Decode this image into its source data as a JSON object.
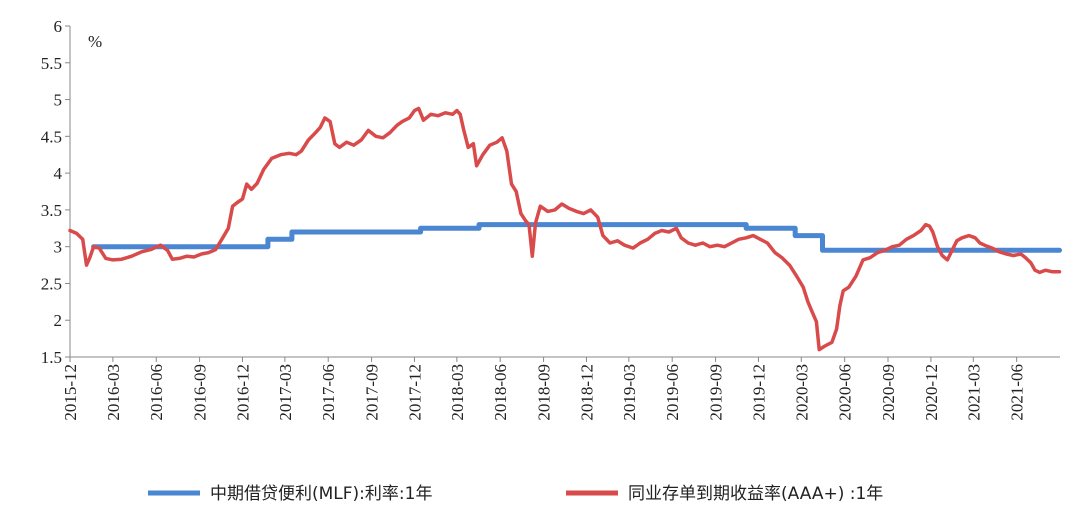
{
  "chart_data": {
    "type": "line",
    "title": "",
    "xlabel": "",
    "ylabel": "",
    "y_unit": "%",
    "ylim": [
      1.5,
      6
    ],
    "yticks": [
      "1.5",
      "2",
      "2.5",
      "3",
      "3.5",
      "4",
      "4.5",
      "5",
      "5.5",
      "6"
    ],
    "xlim": [
      "2015-12",
      "2021-09"
    ],
    "xticks": [
      "2015-12",
      "2016-03",
      "2016-06",
      "2016-09",
      "2016-12",
      "2017-03",
      "2017-06",
      "2017-09",
      "2017-12",
      "2018-03",
      "2018-06",
      "2018-09",
      "2018-12",
      "2019-03",
      "2019-06",
      "2019-09",
      "2019-12",
      "2020-03",
      "2020-06",
      "2020-09",
      "2020-12",
      "2021-03",
      "2021-06"
    ],
    "grid": false,
    "legend_position": "bottom",
    "series": [
      {
        "name": "中期借贷便利(MLF):利率:1年",
        "color": "#4a86d2",
        "step": true,
        "points": [
          [
            "2016-01-20",
            3.0
          ],
          [
            "2017-01-24",
            3.1
          ],
          [
            "2017-03-16",
            3.2
          ],
          [
            "2017-12-14",
            3.25
          ],
          [
            "2018-04-17",
            3.3
          ],
          [
            "2019-11-05",
            3.25
          ],
          [
            "2020-02-17",
            3.15
          ],
          [
            "2020-04-15",
            2.95
          ],
          [
            "2021-08-31",
            2.95
          ]
        ]
      },
      {
        "name": "同业存单到期收益率(AAA+)  :1年",
        "color": "#d94b4b",
        "points": [
          [
            "2015-12-01",
            3.22
          ],
          [
            "2015-12-15",
            3.18
          ],
          [
            "2015-12-28",
            3.1
          ],
          [
            "2016-01-05",
            2.75
          ],
          [
            "2016-01-12",
            2.85
          ],
          [
            "2016-01-20",
            3.0
          ],
          [
            "2016-02-01",
            2.98
          ],
          [
            "2016-02-15",
            2.84
          ],
          [
            "2016-03-01",
            2.82
          ],
          [
            "2016-03-20",
            2.83
          ],
          [
            "2016-04-10",
            2.87
          ],
          [
            "2016-05-01",
            2.93
          ],
          [
            "2016-05-20",
            2.96
          ],
          [
            "2016-06-10",
            3.02
          ],
          [
            "2016-06-25",
            2.95
          ],
          [
            "2016-07-05",
            2.83
          ],
          [
            "2016-07-20",
            2.84
          ],
          [
            "2016-08-05",
            2.87
          ],
          [
            "2016-08-20",
            2.86
          ],
          [
            "2016-09-05",
            2.9
          ],
          [
            "2016-09-20",
            2.92
          ],
          [
            "2016-10-05",
            2.96
          ],
          [
            "2016-10-20",
            3.12
          ],
          [
            "2016-11-01",
            3.25
          ],
          [
            "2016-11-10",
            3.55
          ],
          [
            "2016-11-20",
            3.6
          ],
          [
            "2016-12-01",
            3.65
          ],
          [
            "2016-12-10",
            3.85
          ],
          [
            "2016-12-20",
            3.78
          ],
          [
            "2017-01-01",
            3.86
          ],
          [
            "2017-01-15",
            4.05
          ],
          [
            "2017-02-01",
            4.2
          ],
          [
            "2017-02-20",
            4.25
          ],
          [
            "2017-03-10",
            4.27
          ],
          [
            "2017-03-25",
            4.25
          ],
          [
            "2017-04-05",
            4.3
          ],
          [
            "2017-04-20",
            4.45
          ],
          [
            "2017-05-05",
            4.55
          ],
          [
            "2017-05-15",
            4.62
          ],
          [
            "2017-05-25",
            4.75
          ],
          [
            "2017-06-05",
            4.7
          ],
          [
            "2017-06-15",
            4.4
          ],
          [
            "2017-06-25",
            4.35
          ],
          [
            "2017-07-10",
            4.42
          ],
          [
            "2017-07-25",
            4.38
          ],
          [
            "2017-08-10",
            4.45
          ],
          [
            "2017-08-25",
            4.58
          ],
          [
            "2017-09-10",
            4.5
          ],
          [
            "2017-09-25",
            4.48
          ],
          [
            "2017-10-10",
            4.55
          ],
          [
            "2017-10-25",
            4.65
          ],
          [
            "2017-11-05",
            4.7
          ],
          [
            "2017-11-20",
            4.75
          ],
          [
            "2017-12-01",
            4.85
          ],
          [
            "2017-12-10",
            4.88
          ],
          [
            "2017-12-20",
            4.72
          ],
          [
            "2018-01-05",
            4.8
          ],
          [
            "2018-01-20",
            4.78
          ],
          [
            "2018-02-05",
            4.82
          ],
          [
            "2018-02-20",
            4.8
          ],
          [
            "2018-03-01",
            4.85
          ],
          [
            "2018-03-08",
            4.8
          ],
          [
            "2018-03-15",
            4.6
          ],
          [
            "2018-03-25",
            4.35
          ],
          [
            "2018-04-05",
            4.4
          ],
          [
            "2018-04-12",
            4.1
          ],
          [
            "2018-04-25",
            4.25
          ],
          [
            "2018-05-10",
            4.38
          ],
          [
            "2018-05-25",
            4.42
          ],
          [
            "2018-06-05",
            4.48
          ],
          [
            "2018-06-15",
            4.3
          ],
          [
            "2018-06-25",
            3.85
          ],
          [
            "2018-07-05",
            3.75
          ],
          [
            "2018-07-15",
            3.45
          ],
          [
            "2018-07-25",
            3.35
          ],
          [
            "2018-08-01",
            3.3
          ],
          [
            "2018-08-08",
            2.87
          ],
          [
            "2018-08-15",
            3.32
          ],
          [
            "2018-08-25",
            3.55
          ],
          [
            "2018-09-10",
            3.48
          ],
          [
            "2018-09-25",
            3.5
          ],
          [
            "2018-10-10",
            3.58
          ],
          [
            "2018-10-25",
            3.52
          ],
          [
            "2018-11-10",
            3.48
          ],
          [
            "2018-11-25",
            3.45
          ],
          [
            "2018-12-10",
            3.5
          ],
          [
            "2018-12-25",
            3.4
          ],
          [
            "2019-01-05",
            3.15
          ],
          [
            "2019-01-20",
            3.05
          ],
          [
            "2019-02-05",
            3.08
          ],
          [
            "2019-02-20",
            3.02
          ],
          [
            "2019-03-10",
            2.98
          ],
          [
            "2019-03-25",
            3.05
          ],
          [
            "2019-04-10",
            3.1
          ],
          [
            "2019-04-25",
            3.18
          ],
          [
            "2019-05-10",
            3.22
          ],
          [
            "2019-05-25",
            3.2
          ],
          [
            "2019-06-10",
            3.25
          ],
          [
            "2019-06-20",
            3.12
          ],
          [
            "2019-07-05",
            3.05
          ],
          [
            "2019-07-20",
            3.02
          ],
          [
            "2019-08-05",
            3.05
          ],
          [
            "2019-08-20",
            3.0
          ],
          [
            "2019-09-05",
            3.02
          ],
          [
            "2019-09-20",
            3.0
          ],
          [
            "2019-10-05",
            3.05
          ],
          [
            "2019-10-20",
            3.1
          ],
          [
            "2019-11-05",
            3.12
          ],
          [
            "2019-11-20",
            3.15
          ],
          [
            "2019-12-05",
            3.1
          ],
          [
            "2019-12-20",
            3.05
          ],
          [
            "2020-01-05",
            2.92
          ],
          [
            "2020-01-20",
            2.85
          ],
          [
            "2020-02-05",
            2.75
          ],
          [
            "2020-02-20",
            2.6
          ],
          [
            "2020-03-05",
            2.45
          ],
          [
            "2020-03-15",
            2.25
          ],
          [
            "2020-03-25",
            2.1
          ],
          [
            "2020-04-02",
            1.98
          ],
          [
            "2020-04-08",
            1.6
          ],
          [
            "2020-04-20",
            1.65
          ],
          [
            "2020-05-05",
            1.7
          ],
          [
            "2020-05-15",
            1.88
          ],
          [
            "2020-05-22",
            2.2
          ],
          [
            "2020-05-29",
            2.4
          ],
          [
            "2020-06-10",
            2.45
          ],
          [
            "2020-06-25",
            2.6
          ],
          [
            "2020-07-10",
            2.82
          ],
          [
            "2020-07-25",
            2.85
          ],
          [
            "2020-08-10",
            2.92
          ],
          [
            "2020-08-25",
            2.95
          ],
          [
            "2020-09-10",
            3.0
          ],
          [
            "2020-09-25",
            3.02
          ],
          [
            "2020-10-10",
            3.1
          ],
          [
            "2020-10-25",
            3.15
          ],
          [
            "2020-11-10",
            3.22
          ],
          [
            "2020-11-20",
            3.3
          ],
          [
            "2020-11-28",
            3.28
          ],
          [
            "2020-12-05",
            3.2
          ],
          [
            "2020-12-15",
            3.0
          ],
          [
            "2020-12-25",
            2.88
          ],
          [
            "2021-01-05",
            2.82
          ],
          [
            "2021-01-15",
            2.95
          ],
          [
            "2021-01-25",
            3.08
          ],
          [
            "2021-02-05",
            3.12
          ],
          [
            "2021-02-20",
            3.15
          ],
          [
            "2021-03-05",
            3.12
          ],
          [
            "2021-03-15",
            3.05
          ],
          [
            "2021-03-25",
            3.02
          ],
          [
            "2021-04-10",
            2.98
          ],
          [
            "2021-04-25",
            2.93
          ],
          [
            "2021-05-10",
            2.9
          ],
          [
            "2021-05-25",
            2.88
          ],
          [
            "2021-06-10",
            2.9
          ],
          [
            "2021-06-20",
            2.85
          ],
          [
            "2021-07-01",
            2.78
          ],
          [
            "2021-07-10",
            2.68
          ],
          [
            "2021-07-20",
            2.65
          ],
          [
            "2021-08-01",
            2.68
          ],
          [
            "2021-08-15",
            2.66
          ],
          [
            "2021-08-31",
            2.66
          ]
        ]
      }
    ]
  }
}
